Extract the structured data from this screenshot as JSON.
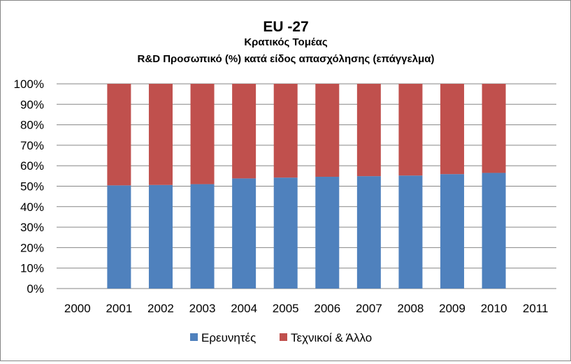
{
  "chart_data": {
    "type": "bar",
    "stacked": true,
    "percent_stacked": true,
    "title": "EU -27",
    "subtitle_line1": "Κρατικός Τομέας",
    "subtitle_line2": "R&D  Προσωπικό (%) κατά είδος απασχόλησης (επάγγελμα)",
    "categories": [
      "2000",
      "2001",
      "2002",
      "2003",
      "2004",
      "2005",
      "2006",
      "2007",
      "2008",
      "2009",
      "2010",
      "2011"
    ],
    "series": [
      {
        "name": "Ερευνητές",
        "color": "#4F81BD",
        "values": [
          null,
          50.4,
          50.6,
          51.0,
          53.8,
          54.2,
          54.6,
          54.9,
          55.2,
          55.9,
          56.5,
          null
        ]
      },
      {
        "name": "Τεχνικοί & Άλλο",
        "color": "#C0504D",
        "values": [
          null,
          49.6,
          49.4,
          49.0,
          46.2,
          45.8,
          45.4,
          45.1,
          44.8,
          44.1,
          43.5,
          null
        ]
      }
    ],
    "yticks": [
      "0%",
      "10%",
      "20%",
      "30%",
      "40%",
      "50%",
      "60%",
      "70%",
      "80%",
      "90%",
      "100%"
    ],
    "ylim": [
      0,
      100
    ],
    "grid": true,
    "gridline_color": "#868686",
    "legend_position": "bottom"
  }
}
